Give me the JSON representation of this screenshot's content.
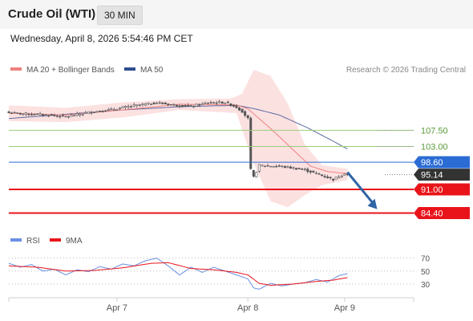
{
  "header": {
    "title": "Crude Oil (WTI)",
    "interval": "30 MIN",
    "datetime": "Wednesday, April 8, 2026 5:54:46 PM CET"
  },
  "colors": {
    "price": "#555555",
    "ma20": "#f08080",
    "band": "#fbdada",
    "ma50": "#5a6aa0",
    "resistance": "#9acd7a",
    "pivot": "#2b6cd4",
    "support": "#e8141a",
    "last": "#333333",
    "rsi": "#6a8fdf",
    "rsi_ma": "#e8141a",
    "arrow": "#2f64a6"
  },
  "legend": {
    "ma20": "MA 20 + Bollinger Bands",
    "ma50": "MA 50",
    "credit": "Research © 2026 Trading Central"
  },
  "rsi_legend": {
    "rsi": "RSI",
    "rsi_ma": "9MA"
  },
  "chart_data": [
    {
      "type": "candlestick",
      "title": "Crude Oil (WTI)",
      "interval": "30 MIN",
      "x_ticks": [
        "Apr 7",
        "Apr 8",
        "Apr 9"
      ],
      "x_tick_bars": [
        38,
        84,
        118
      ],
      "bar_count": 130,
      "price_anchors": [
        {
          "bar": 0,
          "price": 112.4
        },
        {
          "bar": 8,
          "price": 112.0
        },
        {
          "bar": 14,
          "price": 111.8
        },
        {
          "bar": 20,
          "price": 111.3
        },
        {
          "bar": 28,
          "price": 112.5
        },
        {
          "bar": 36,
          "price": 113.3
        },
        {
          "bar": 44,
          "price": 114.4
        },
        {
          "bar": 52,
          "price": 115.2
        },
        {
          "bar": 58,
          "price": 114.6
        },
        {
          "bar": 64,
          "price": 114.2
        },
        {
          "bar": 70,
          "price": 115.2
        },
        {
          "bar": 76,
          "price": 115.3
        },
        {
          "bar": 80,
          "price": 114.0
        },
        {
          "bar": 82,
          "price": 112.8
        },
        {
          "bar": 84,
          "price": 110.8
        },
        {
          "bar": 85,
          "price": 96.5
        },
        {
          "bar": 86,
          "price": 94.4
        },
        {
          "bar": 88,
          "price": 97.7
        },
        {
          "bar": 96,
          "price": 97.4
        },
        {
          "bar": 104,
          "price": 96.5
        },
        {
          "bar": 110,
          "price": 94.9
        },
        {
          "bar": 114,
          "price": 93.8
        },
        {
          "bar": 118,
          "price": 95.5
        },
        {
          "bar": 119,
          "price": 95.14
        }
      ],
      "ma20": [
        {
          "bar": 0,
          "price": 112.3
        },
        {
          "bar": 20,
          "price": 111.8
        },
        {
          "bar": 40,
          "price": 113.2
        },
        {
          "bar": 60,
          "price": 114.8
        },
        {
          "bar": 80,
          "price": 114.6
        },
        {
          "bar": 84,
          "price": 113.5
        },
        {
          "bar": 92,
          "price": 108.0
        },
        {
          "bar": 100,
          "price": 102.0
        },
        {
          "bar": 106,
          "price": 97.5
        },
        {
          "bar": 112,
          "price": 96.0
        },
        {
          "bar": 119,
          "price": 95.4
        }
      ],
      "ma50": [
        {
          "bar": 0,
          "price": 110.8
        },
        {
          "bar": 20,
          "price": 112.0
        },
        {
          "bar": 40,
          "price": 113.2
        },
        {
          "bar": 60,
          "price": 114.1
        },
        {
          "bar": 80,
          "price": 114.5
        },
        {
          "bar": 86,
          "price": 113.6
        },
        {
          "bar": 95,
          "price": 111.8
        },
        {
          "bar": 105,
          "price": 108.2
        },
        {
          "bar": 113,
          "price": 104.9
        },
        {
          "bar": 119,
          "price": 102.3
        }
      ],
      "bollinger_upper": [
        {
          "bar": 0,
          "price": 114.5
        },
        {
          "bar": 20,
          "price": 113.8
        },
        {
          "bar": 40,
          "price": 115.3
        },
        {
          "bar": 60,
          "price": 116.2
        },
        {
          "bar": 78,
          "price": 116.4
        },
        {
          "bar": 82,
          "price": 117.7
        },
        {
          "bar": 86,
          "price": 124.4
        },
        {
          "bar": 92,
          "price": 122.7
        },
        {
          "bar": 98,
          "price": 115.0
        },
        {
          "bar": 104,
          "price": 103.6
        },
        {
          "bar": 110,
          "price": 97.8
        },
        {
          "bar": 119,
          "price": 96.8
        }
      ],
      "bollinger_lower": [
        {
          "bar": 0,
          "price": 110.1
        },
        {
          "bar": 20,
          "price": 109.8
        },
        {
          "bar": 40,
          "price": 111.1
        },
        {
          "bar": 60,
          "price": 113.2
        },
        {
          "bar": 80,
          "price": 112.3
        },
        {
          "bar": 86,
          "price": 98.3
        },
        {
          "bar": 92,
          "price": 87.7
        },
        {
          "bar": 98,
          "price": 86.0
        },
        {
          "bar": 104,
          "price": 89.4
        },
        {
          "bar": 110,
          "price": 92.2
        },
        {
          "bar": 119,
          "price": 93.6
        }
      ],
      "levels": [
        {
          "value": 107.5,
          "label": "107.50",
          "role": "resistance"
        },
        {
          "value": 103.0,
          "label": "103.00",
          "role": "resistance"
        },
        {
          "value": 98.6,
          "label": "98.60",
          "role": "pivot"
        },
        {
          "value": 95.14,
          "label": "95.14",
          "role": "last"
        },
        {
          "value": 91.0,
          "label": "91.00",
          "role": "support"
        },
        {
          "value": 84.4,
          "label": "84.40",
          "role": "support"
        }
      ],
      "arrow": {
        "from_bar": 119,
        "from_price": 95.8,
        "to_bar": 130,
        "to_price": 85.5
      }
    },
    {
      "type": "line",
      "title": "RSI",
      "y_ticks": [
        70,
        50,
        30
      ],
      "ylim": [
        15,
        82
      ],
      "series": [
        {
          "name": "RSI",
          "anchors": [
            {
              "bar": 0,
              "value": 62
            },
            {
              "bar": 4,
              "value": 56
            },
            {
              "bar": 8,
              "value": 60
            },
            {
              "bar": 12,
              "value": 50
            },
            {
              "bar": 16,
              "value": 53
            },
            {
              "bar": 20,
              "value": 44
            },
            {
              "bar": 24,
              "value": 52
            },
            {
              "bar": 28,
              "value": 49
            },
            {
              "bar": 32,
              "value": 57
            },
            {
              "bar": 36,
              "value": 53
            },
            {
              "bar": 40,
              "value": 61
            },
            {
              "bar": 44,
              "value": 58
            },
            {
              "bar": 48,
              "value": 66
            },
            {
              "bar": 52,
              "value": 70
            },
            {
              "bar": 56,
              "value": 58
            },
            {
              "bar": 60,
              "value": 44
            },
            {
              "bar": 64,
              "value": 56
            },
            {
              "bar": 68,
              "value": 48
            },
            {
              "bar": 72,
              "value": 56
            },
            {
              "bar": 76,
              "value": 50
            },
            {
              "bar": 80,
              "value": 44
            },
            {
              "bar": 84,
              "value": 38
            },
            {
              "bar": 86,
              "value": 24
            },
            {
              "bar": 88,
              "value": 22
            },
            {
              "bar": 92,
              "value": 31
            },
            {
              "bar": 96,
              "value": 27
            },
            {
              "bar": 100,
              "value": 30
            },
            {
              "bar": 104,
              "value": 32
            },
            {
              "bar": 108,
              "value": 37
            },
            {
              "bar": 112,
              "value": 33
            },
            {
              "bar": 116,
              "value": 43
            },
            {
              "bar": 119,
              "value": 46
            }
          ]
        },
        {
          "name": "9MA",
          "anchors": [
            {
              "bar": 0,
              "value": 58
            },
            {
              "bar": 10,
              "value": 56
            },
            {
              "bar": 20,
              "value": 50
            },
            {
              "bar": 30,
              "value": 51
            },
            {
              "bar": 40,
              "value": 55
            },
            {
              "bar": 50,
              "value": 62
            },
            {
              "bar": 56,
              "value": 63
            },
            {
              "bar": 64,
              "value": 54
            },
            {
              "bar": 72,
              "value": 52
            },
            {
              "bar": 80,
              "value": 48
            },
            {
              "bar": 84,
              "value": 44
            },
            {
              "bar": 88,
              "value": 31
            },
            {
              "bar": 92,
              "value": 28
            },
            {
              "bar": 100,
              "value": 30
            },
            {
              "bar": 108,
              "value": 34
            },
            {
              "bar": 114,
              "value": 36
            },
            {
              "bar": 119,
              "value": 40
            }
          ]
        }
      ]
    }
  ]
}
